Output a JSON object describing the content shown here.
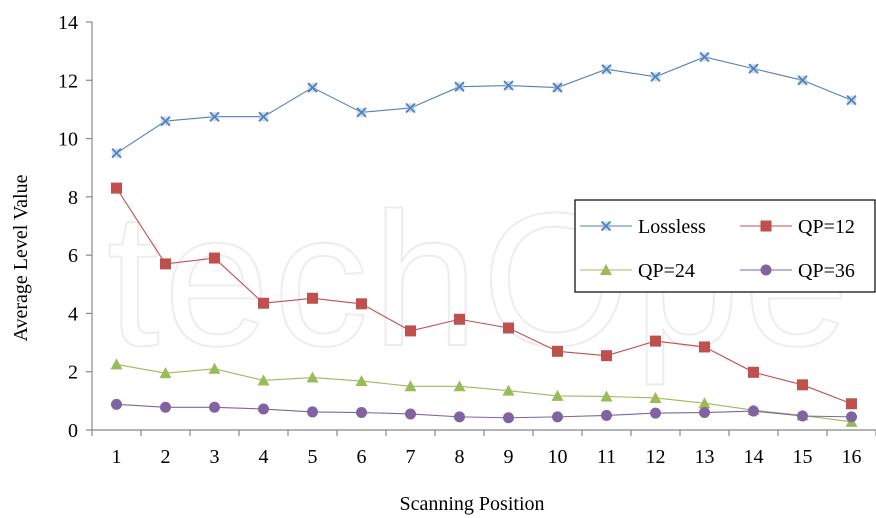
{
  "chart_data": {
    "type": "line",
    "title": "",
    "xlabel": "Scanning Position",
    "ylabel": "Average Level Value",
    "categories": [
      "1",
      "2",
      "3",
      "4",
      "5",
      "6",
      "7",
      "8",
      "9",
      "10",
      "11",
      "12",
      "13",
      "14",
      "15",
      "16"
    ],
    "ylim": [
      0,
      14
    ],
    "yticks": [
      0,
      2,
      4,
      6,
      8,
      10,
      12,
      14
    ],
    "grid": false,
    "legend_position": "right",
    "series": [
      {
        "name": "Lossless",
        "marker": "x",
        "color": "#4F81BD",
        "values": [
          9.5,
          10.6,
          10.75,
          10.75,
          11.75,
          10.9,
          11.05,
          11.78,
          11.82,
          11.75,
          12.38,
          12.12,
          12.8,
          12.4,
          12.0,
          11.32
        ]
      },
      {
        "name": "QP=12",
        "marker": "square",
        "color": "#C0504D",
        "values": [
          8.3,
          5.7,
          5.9,
          4.35,
          4.52,
          4.33,
          3.4,
          3.8,
          3.5,
          2.7,
          2.55,
          3.05,
          2.85,
          1.98,
          1.55,
          0.9
        ]
      },
      {
        "name": "QP=24",
        "marker": "triangle",
        "color": "#9BBB59",
        "values": [
          2.25,
          1.95,
          2.1,
          1.7,
          1.8,
          1.68,
          1.5,
          1.5,
          1.35,
          1.17,
          1.15,
          1.1,
          0.92,
          0.68,
          0.5,
          0.28
        ]
      },
      {
        "name": "QP=36",
        "marker": "circle",
        "color": "#8064A2",
        "values": [
          0.88,
          0.78,
          0.78,
          0.72,
          0.62,
          0.6,
          0.55,
          0.45,
          0.42,
          0.45,
          0.5,
          0.58,
          0.6,
          0.65,
          0.48,
          0.45
        ]
      }
    ]
  }
}
